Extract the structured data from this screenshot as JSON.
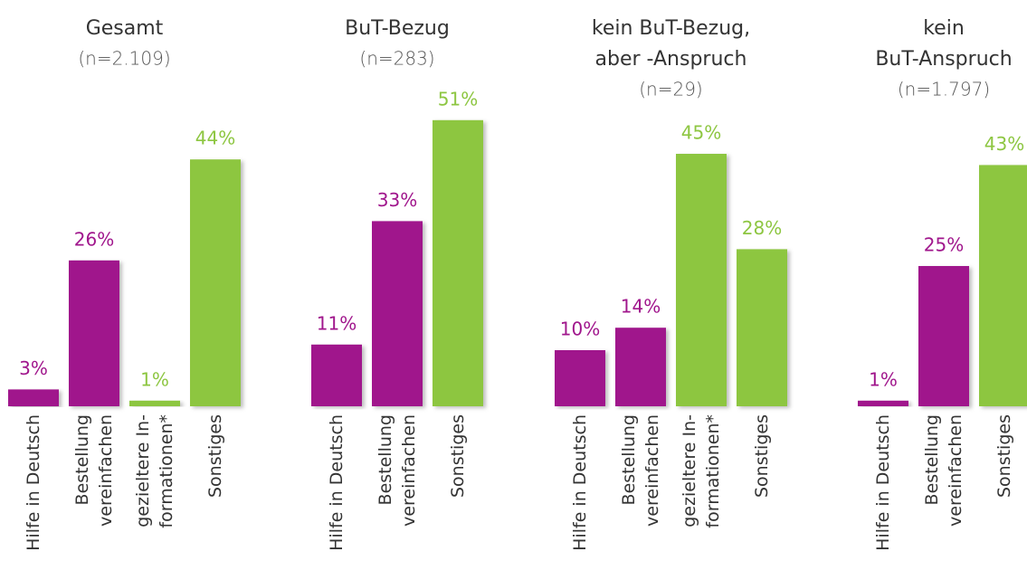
{
  "chart_data": [
    {
      "type": "bar",
      "title": "Gesamt",
      "subtitle": "(n=2.109)",
      "categories": [
        "Hilfe in Deutsch",
        "Bestellung\nvereinfachen",
        "gezieltere In-\nformationen*",
        "Sonstiges"
      ],
      "values": [
        3,
        26,
        1,
        44
      ],
      "value_labels": [
        "3%",
        "26%",
        "1%",
        "44%"
      ],
      "colors": [
        "#a0168c",
        "#a0168c",
        "#8dc641",
        "#8dc641"
      ]
    },
    {
      "type": "bar",
      "title": "BuT-Bezug",
      "subtitle": "(n=283)",
      "categories": [
        "Hilfe in Deutsch",
        "Bestellung\nvereinfachen",
        "Sonstiges"
      ],
      "values": [
        11,
        33,
        51
      ],
      "value_labels": [
        "11%",
        "33%",
        "51%"
      ],
      "colors": [
        "#a0168c",
        "#a0168c",
        "#8dc641"
      ]
    },
    {
      "type": "bar",
      "title": "kein BuT-Bezug,\naber -Anspruch",
      "subtitle": "(n=29)",
      "categories": [
        "Hilfe in Deutsch",
        "Bestellung\nvereinfachen",
        "gezieltere In-\nformationen*",
        "Sonstiges"
      ],
      "values": [
        10,
        14,
        45,
        28
      ],
      "value_labels": [
        "10%",
        "14%",
        "45%",
        "28%"
      ],
      "colors": [
        "#a0168c",
        "#a0168c",
        "#8dc641",
        "#8dc641"
      ]
    },
    {
      "type": "bar",
      "title": "kein\nBuT-Anspruch",
      "subtitle": "(n=1.797)",
      "categories": [
        "Hilfe in Deutsch",
        "Bestellung\nvereinfachen",
        "Sonstiges"
      ],
      "values": [
        1,
        25,
        43
      ],
      "value_labels": [
        "1%",
        "25%",
        "43%"
      ],
      "colors": [
        "#a0168c",
        "#a0168c",
        "#8dc641"
      ]
    }
  ]
}
